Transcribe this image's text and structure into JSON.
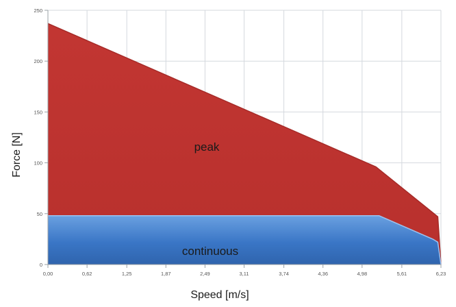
{
  "chart_data": {
    "type": "area",
    "xlabel": "Speed [m/s]",
    "ylabel": "Force [N]",
    "xlim": [
      0,
      6.23
    ],
    "ylim": [
      0,
      250
    ],
    "x_ticks": [
      "0,00",
      "0,62",
      "1,25",
      "1,87",
      "2,49",
      "3,11",
      "3,74",
      "4,36",
      "4,98",
      "5,61",
      "6,23"
    ],
    "y_ticks": [
      "0",
      "50",
      "100",
      "150",
      "200",
      "250"
    ],
    "grid": true,
    "legend": "none",
    "series": [
      {
        "name": "peak",
        "color": "#c83a36",
        "x": [
          0,
          5.2,
          6.18,
          6.23
        ],
        "y": [
          237,
          96,
          47,
          0
        ]
      },
      {
        "name": "continuous",
        "color": "#3b76c2",
        "x": [
          0,
          5.25,
          6.1,
          6.18,
          6.23
        ],
        "y": [
          48,
          48,
          25,
          22,
          0
        ]
      }
    ]
  }
}
